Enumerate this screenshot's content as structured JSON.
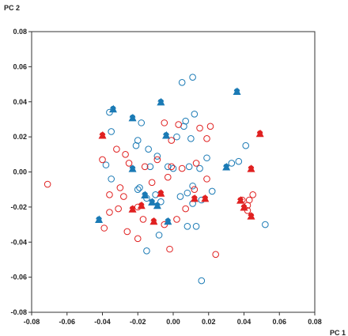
{
  "chart_data": {
    "type": "scatter",
    "xlabel": "PC 1",
    "ylabel": "PC 2",
    "xlim": [
      -0.08,
      0.08
    ],
    "ylim": [
      -0.08,
      0.08
    ],
    "xticks": [
      -0.08,
      -0.06,
      -0.04,
      -0.02,
      0.0,
      0.02,
      0.04,
      0.06,
      0.08
    ],
    "yticks": [
      -0.08,
      -0.06,
      -0.04,
      -0.02,
      0.0,
      0.02,
      0.04,
      0.06,
      0.08
    ],
    "xtick_labels": [
      "-0.08",
      "-0.06",
      "-0.04",
      "-0.02",
      "0.00",
      "0.02",
      "0.04",
      "0.06",
      "0.08"
    ],
    "ytick_labels": [
      "-0.08",
      "-0.06",
      "-0.04",
      "-0.02",
      "0.00",
      "0.02",
      "0.04",
      "0.06",
      "0.08"
    ],
    "grid": false,
    "colors": {
      "blue": "#1a7ab5",
      "red": "#e02020"
    },
    "series": [
      {
        "marker": "open-circle",
        "color": "#1a7ab5",
        "points": [
          [
            0.005,
            0.051
          ],
          [
            0.011,
            0.054
          ],
          [
            0.012,
            0.033
          ],
          [
            0.007,
            0.029
          ],
          [
            0.002,
            0.02
          ],
          [
            0.006,
            0.026
          ],
          [
            0.01,
            0.019
          ],
          [
            -0.02,
            0.018
          ],
          [
            -0.021,
            0.015
          ],
          [
            -0.036,
            0.034
          ],
          [
            -0.035,
            0.023
          ],
          [
            -0.018,
            0.028
          ],
          [
            -0.014,
            0.013
          ],
          [
            -0.009,
            0.009
          ],
          [
            -0.013,
            0.003
          ],
          [
            -0.003,
            0.003
          ],
          [
            0.0,
            0.002
          ],
          [
            0.009,
            0.003
          ],
          [
            0.015,
            0.002
          ],
          [
            0.019,
            0.008
          ],
          [
            0.033,
            0.005
          ],
          [
            0.037,
            0.006
          ],
          [
            0.041,
            0.015
          ],
          [
            -0.035,
            -0.004
          ],
          [
            -0.038,
            0.004
          ],
          [
            -0.019,
            -0.009
          ],
          [
            -0.01,
            -0.013
          ],
          [
            -0.007,
            -0.017
          ],
          [
            0.011,
            -0.008
          ],
          [
            0.008,
            -0.012
          ],
          [
            0.004,
            -0.014
          ],
          [
            0.011,
            -0.018
          ],
          [
            0.016,
            -0.016
          ],
          [
            0.022,
            -0.011
          ],
          [
            -0.015,
            -0.045
          ],
          [
            -0.008,
            -0.036
          ],
          [
            0.008,
            -0.031
          ],
          [
            0.013,
            -0.031
          ],
          [
            0.016,
            -0.062
          ],
          [
            -0.02,
            -0.01
          ],
          [
            0.052,
            -0.03
          ],
          [
            -0.015,
            -0.015
          ]
        ]
      },
      {
        "marker": "open-circle",
        "color": "#e02020",
        "points": [
          [
            -0.005,
            0.028
          ],
          [
            -0.001,
            0.018
          ],
          [
            0.003,
            0.027
          ],
          [
            0.015,
            0.025
          ],
          [
            0.021,
            0.026
          ],
          [
            0.019,
            0.019
          ],
          [
            -0.027,
            0.01
          ],
          [
            -0.025,
            0.005
          ],
          [
            -0.016,
            0.003
          ],
          [
            -0.012,
            -0.006
          ],
          [
            -0.003,
            -0.003
          ],
          [
            -0.001,
            0.003
          ],
          [
            0.005,
            0.002
          ],
          [
            0.013,
            0.005
          ],
          [
            0.019,
            -0.004
          ],
          [
            -0.036,
            -0.013
          ],
          [
            -0.03,
            -0.009
          ],
          [
            -0.031,
            -0.021
          ],
          [
            -0.036,
            -0.023
          ],
          [
            -0.039,
            -0.032
          ],
          [
            -0.02,
            -0.02
          ],
          [
            -0.017,
            -0.027
          ],
          [
            -0.026,
            -0.034
          ],
          [
            -0.02,
            -0.038
          ],
          [
            -0.005,
            -0.03
          ],
          [
            0.002,
            -0.027
          ],
          [
            -0.002,
            -0.044
          ],
          [
            0.007,
            -0.021
          ],
          [
            0.012,
            -0.01
          ],
          [
            0.024,
            -0.047
          ],
          [
            0.039,
            -0.016
          ],
          [
            0.042,
            -0.022
          ],
          [
            0.042,
            -0.019
          ],
          [
            0.043,
            -0.016
          ],
          [
            0.045,
            -0.013
          ],
          [
            -0.071,
            -0.007
          ],
          [
            -0.032,
            0.013
          ],
          [
            -0.009,
            0.007
          ],
          [
            -0.028,
            -0.014
          ],
          [
            -0.04,
            0.007
          ]
        ]
      },
      {
        "marker": "filled-semi",
        "color": "#1a7ab5",
        "points": [
          [
            -0.034,
            0.036
          ],
          [
            -0.023,
            0.031
          ],
          [
            -0.007,
            0.04
          ],
          [
            0.036,
            0.046
          ],
          [
            -0.004,
            0.021
          ],
          [
            -0.023,
            0.002
          ],
          [
            0.03,
            0.003
          ],
          [
            -0.016,
            -0.013
          ],
          [
            -0.009,
            -0.019
          ],
          [
            -0.012,
            -0.017
          ],
          [
            -0.042,
            -0.027
          ],
          [
            -0.003,
            -0.028
          ]
        ]
      },
      {
        "marker": "filled-semi",
        "color": "#e02020",
        "points": [
          [
            -0.04,
            0.021
          ],
          [
            0.049,
            0.022
          ],
          [
            -0.007,
            -0.012
          ],
          [
            0.012,
            -0.015
          ],
          [
            -0.018,
            -0.019
          ],
          [
            -0.023,
            -0.021
          ],
          [
            0.044,
            0.002
          ],
          [
            0.038,
            -0.016
          ],
          [
            0.044,
            -0.025
          ],
          [
            -0.011,
            -0.028
          ],
          [
            0.018,
            -0.015
          ],
          [
            0.04,
            -0.02
          ]
        ]
      }
    ]
  }
}
